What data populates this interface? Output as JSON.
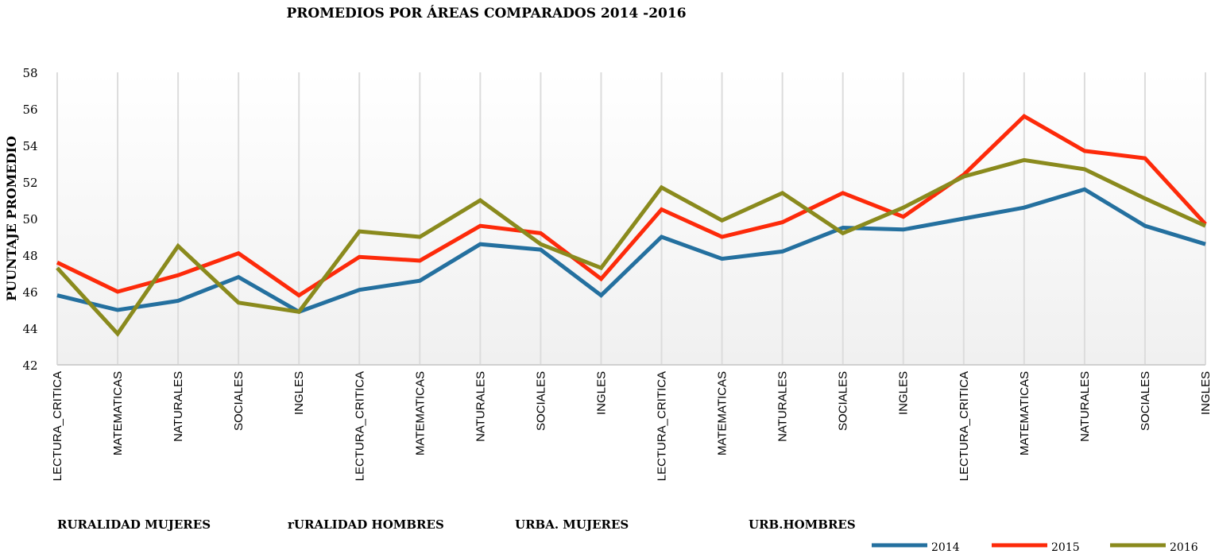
{
  "chart_data": {
    "type": "line",
    "title": "PROMEDIOS POR ÁREAS COMPARADOS 2014 -2016",
    "xlabel": "",
    "ylabel": "PUUNTAJE   PROMEDIO",
    "ylim": [
      42,
      58
    ],
    "yticks": [
      "42",
      "44",
      "46",
      "48",
      "50",
      "52",
      "54",
      "56",
      "58"
    ],
    "grid": "vertical lines at categories",
    "legend_position": "bottom-right",
    "categories": [
      "LECTURA_CRITICA",
      "MATEMATICAS",
      "NATURALES",
      "SOCIALES",
      "INGLES",
      "LECTURA_CRITICA",
      "MATEMATICAS",
      "NATURALES",
      "SOCIALES",
      "INGLES",
      "LECTURA_CRITICA",
      "MATEMATICAS",
      "NATURALES",
      "SOCIALES",
      "INGLES",
      "LECTURA_CRITICA",
      "MATEMATICAS",
      "NATURALES",
      "SOCIALES",
      "INGLES"
    ],
    "groups": [
      "RURALIDAD  MUJERES",
      "rURALIDAD   HOMBRES",
      "URBA. MUJERES",
      "URB.HOMBRES"
    ],
    "series": [
      {
        "name": "2014",
        "color": "#24709f",
        "values": [
          45.8,
          45.0,
          45.5,
          46.8,
          44.9,
          46.1,
          46.6,
          48.6,
          48.3,
          45.8,
          49.0,
          47.8,
          48.2,
          49.5,
          49.4,
          50.0,
          50.6,
          51.6,
          49.6,
          48.6
        ]
      },
      {
        "name": "2015",
        "color": "#fd2a0a",
        "values": [
          47.6,
          46.0,
          46.9,
          48.1,
          45.8,
          47.9,
          47.7,
          49.6,
          49.2,
          46.7,
          50.5,
          49.0,
          49.8,
          51.4,
          50.1,
          52.4,
          55.6,
          53.7,
          53.3,
          49.7
        ]
      },
      {
        "name": "2016",
        "color": "#8a8a1d",
        "values": [
          47.3,
          43.7,
          48.5,
          45.4,
          44.9,
          49.3,
          49.0,
          51.0,
          48.6,
          47.3,
          51.7,
          49.9,
          51.4,
          49.2,
          50.6,
          52.3,
          53.2,
          52.7,
          51.1,
          49.6
        ]
      }
    ]
  }
}
